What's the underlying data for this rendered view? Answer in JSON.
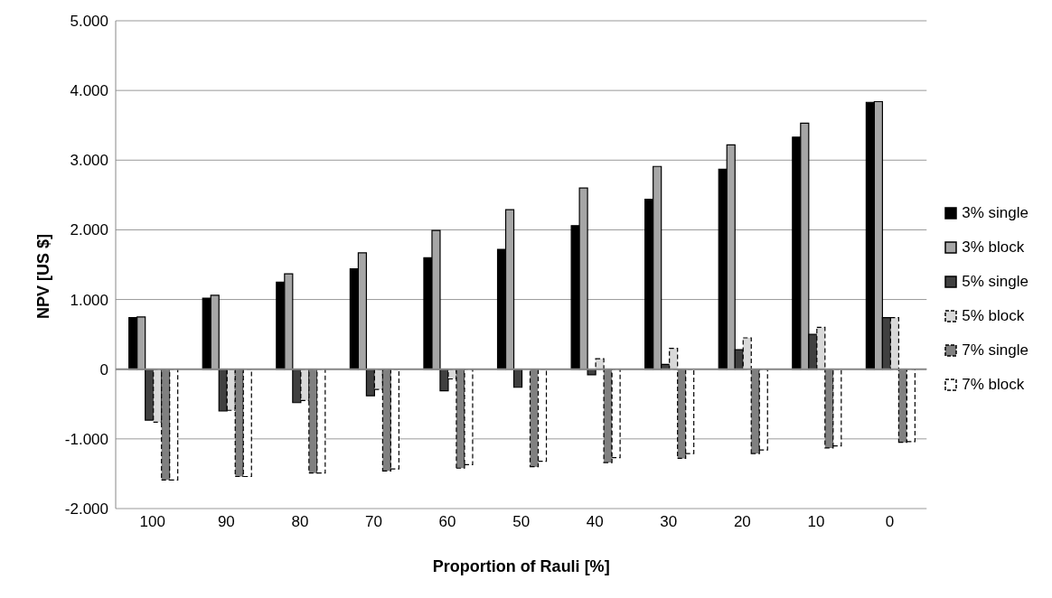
{
  "chart_data": {
    "type": "bar",
    "xlabel": "Proportion of Rauli [%]",
    "ylabel": "NPV [US $]",
    "categories": [
      "100",
      "90",
      "80",
      "70",
      "60",
      "50",
      "40",
      "30",
      "20",
      "10",
      "0"
    ],
    "series": [
      {
        "name": "3% single",
        "color": "#000000",
        "values": [
          740,
          1020,
          1250,
          1440,
          1600,
          1720,
          2060,
          2440,
          2870,
          3330,
          3830
        ]
      },
      {
        "name": "3% block",
        "color": "#a6a6a6",
        "values": [
          750,
          1060,
          1370,
          1670,
          1990,
          2290,
          2600,
          2910,
          3220,
          3530,
          3840
        ]
      },
      {
        "name": "5% single",
        "color": "#404040",
        "values": [
          -730,
          -600,
          -480,
          -380,
          -310,
          -260,
          -80,
          70,
          280,
          500,
          740
        ]
      },
      {
        "name": "5% block",
        "color": "#d9d9d9",
        "line_style": "dashed",
        "values": [
          -760,
          -590,
          -450,
          -290,
          -140,
          0,
          150,
          300,
          450,
          600,
          740
        ]
      },
      {
        "name": "7% single",
        "color": "#808080",
        "line_style": "dashed",
        "values": [
          -1590,
          -1540,
          -1490,
          -1460,
          -1420,
          -1400,
          -1340,
          -1280,
          -1210,
          -1130,
          -1050
        ]
      },
      {
        "name": "7% block",
        "color": "#ffffff",
        "line_style": "dashed",
        "values": [
          -1590,
          -1540,
          -1490,
          -1430,
          -1370,
          -1320,
          -1270,
          -1210,
          -1160,
          -1100,
          -1040
        ]
      }
    ],
    "ylim": [
      -2000,
      5000
    ],
    "yticks": [
      {
        "value": -2000,
        "label": "-2.000"
      },
      {
        "value": -1000,
        "label": "-1.000"
      },
      {
        "value": 0,
        "label": "0"
      },
      {
        "value": 1000,
        "label": "1.000"
      },
      {
        "value": 2000,
        "label": "2.000"
      },
      {
        "value": 3000,
        "label": "3.000"
      },
      {
        "value": 4000,
        "label": "4.000"
      },
      {
        "value": 5000,
        "label": "5.000"
      }
    ],
    "grid": "y",
    "legend": "right"
  }
}
